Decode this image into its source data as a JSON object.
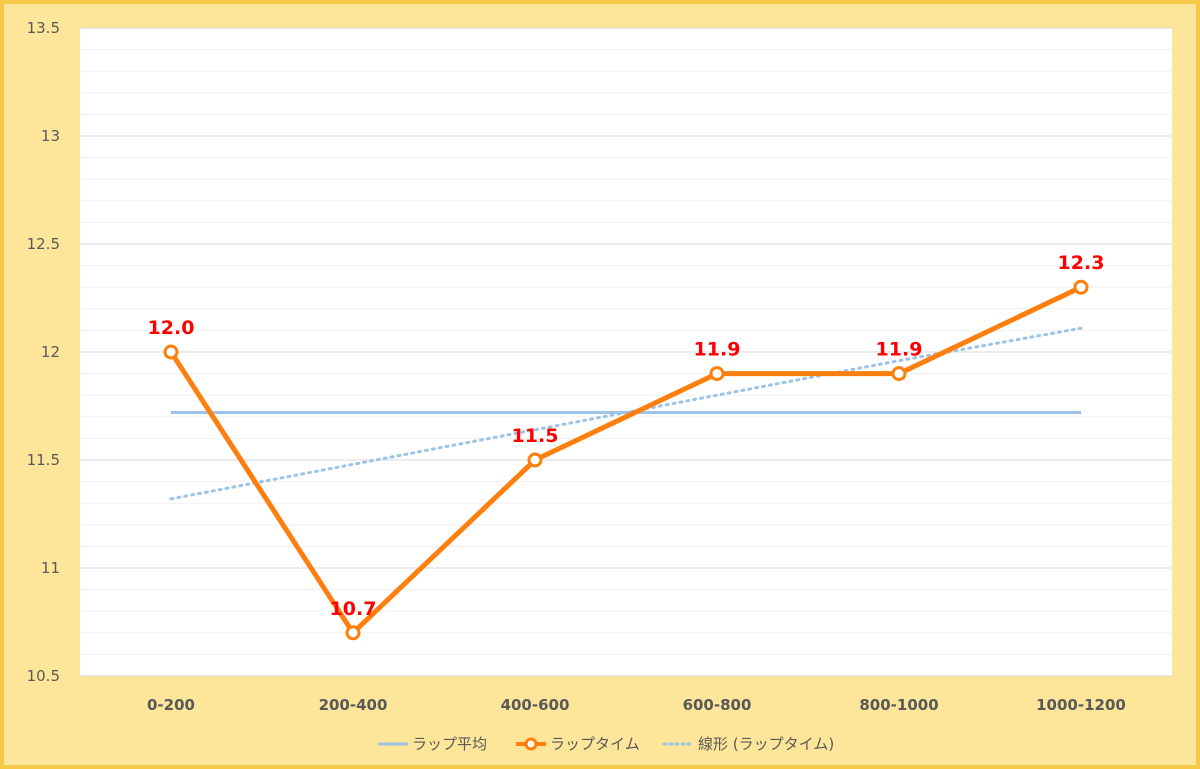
{
  "chart_data": {
    "type": "line",
    "categories": [
      "0-200",
      "200-400",
      "400-600",
      "600-800",
      "800-1000",
      "1000-1200"
    ],
    "series": [
      {
        "name": "ラップ平均",
        "values": [
          11.72,
          11.72,
          11.72,
          11.72,
          11.72,
          11.72
        ],
        "color": "#9dc3e6",
        "style": "solid"
      },
      {
        "name": "ラップタイム",
        "values": [
          12.0,
          10.7,
          11.5,
          11.9,
          11.9,
          12.3
        ],
        "data_labels": [
          "12.0",
          "10.7",
          "11.5",
          "11.9",
          "11.9",
          "12.3"
        ],
        "color": "#ff7f0e",
        "style": "solid-markers"
      },
      {
        "name": "線形 (ラップタイム)",
        "values": [
          11.32,
          11.48,
          11.64,
          11.8,
          11.96,
          12.11
        ],
        "color": "#9dc3e6",
        "style": "dotted"
      }
    ],
    "ylim": [
      10.5,
      13.5
    ],
    "yticks": [
      "10.5",
      "11",
      "11.5",
      "12",
      "12.5",
      "13",
      "13.5"
    ],
    "grid": true,
    "legend_position": "bottom",
    "data_label_color": "#ff0000"
  }
}
